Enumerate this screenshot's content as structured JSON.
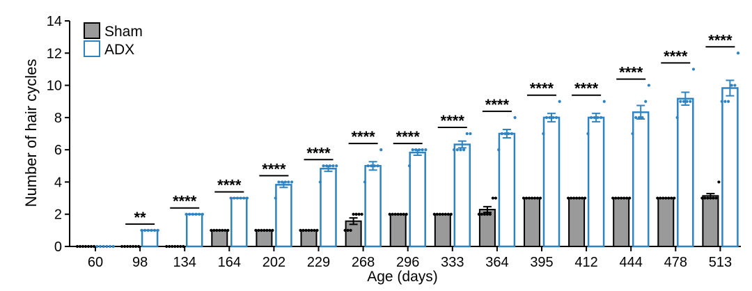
{
  "chart_data": {
    "type": "bar",
    "title": "",
    "xlabel": "Age (days)",
    "ylabel": "Number of hair cycles",
    "ylim": [
      0,
      14
    ],
    "yticks": [
      0,
      2,
      4,
      6,
      8,
      10,
      12,
      14
    ],
    "categories": [
      "60",
      "98",
      "134",
      "164",
      "202",
      "229",
      "268",
      "296",
      "333",
      "364",
      "395",
      "412",
      "444",
      "478",
      "513"
    ],
    "series": [
      {
        "name": "Sham",
        "style": "filled",
        "color": "#9a9a9a",
        "edge": "#000000",
        "values": [
          0,
          0,
          0,
          1,
          1,
          1,
          1.57,
          2,
          2,
          2.29,
          3,
          3,
          3,
          3,
          3.14
        ],
        "sem": [
          0,
          0,
          0,
          0,
          0,
          0,
          0.2,
          0,
          0,
          0.18,
          0,
          0,
          0,
          0,
          0.14
        ],
        "points": [
          [
            0,
            0,
            0,
            0,
            0,
            0,
            0
          ],
          [
            0,
            0,
            0,
            0,
            0,
            0,
            0
          ],
          [
            0,
            0,
            0,
            0,
            0,
            0,
            0
          ],
          [
            1,
            1,
            1,
            1,
            1,
            1,
            1
          ],
          [
            1,
            1,
            1,
            1,
            1,
            1,
            1
          ],
          [
            1,
            1,
            1,
            1,
            1,
            1,
            1
          ],
          [
            1,
            1,
            1,
            2,
            2,
            2,
            2
          ],
          [
            2,
            2,
            2,
            2,
            2,
            2,
            2
          ],
          [
            2,
            2,
            2,
            2,
            2,
            2,
            2
          ],
          [
            2,
            2,
            2,
            2,
            2,
            3,
            3
          ],
          [
            3,
            3,
            3,
            3,
            3,
            3,
            3
          ],
          [
            3,
            3,
            3,
            3,
            3,
            3,
            3
          ],
          [
            3,
            3,
            3,
            3,
            3,
            3,
            3
          ],
          [
            3,
            3,
            3,
            3,
            3,
            3,
            3
          ],
          [
            3,
            3,
            3,
            3,
            3,
            3,
            4
          ]
        ]
      },
      {
        "name": "ADX",
        "style": "open",
        "color": "#2f83c0",
        "edge": "#2f83c0",
        "values": [
          0,
          1,
          2,
          3,
          3.83,
          4.83,
          5.0,
          5.83,
          6.33,
          7.0,
          8.0,
          8.0,
          8.33,
          9.17,
          9.83
        ],
        "sem": [
          0,
          0,
          0,
          0,
          0.17,
          0.17,
          0.26,
          0.17,
          0.21,
          0.26,
          0.26,
          0.26,
          0.42,
          0.4,
          0.48
        ],
        "points": [
          [
            0,
            0,
            0,
            0,
            0,
            0
          ],
          [
            1,
            1,
            1,
            1,
            1,
            1
          ],
          [
            2,
            2,
            2,
            2,
            2,
            2
          ],
          [
            3,
            3,
            3,
            3,
            3,
            3
          ],
          [
            3,
            4,
            4,
            4,
            4,
            4
          ],
          [
            4,
            5,
            5,
            5,
            5,
            5
          ],
          [
            4,
            5,
            5,
            5,
            5,
            6
          ],
          [
            5,
            6,
            6,
            6,
            6,
            6
          ],
          [
            6,
            6,
            6,
            6,
            7,
            7
          ],
          [
            6,
            7,
            7,
            7,
            7,
            8
          ],
          [
            7,
            8,
            8,
            8,
            8,
            9
          ],
          [
            7,
            8,
            8,
            8,
            8,
            9
          ],
          [
            7,
            8,
            8,
            8,
            9,
            10
          ],
          [
            8,
            9,
            9,
            9,
            9,
            11
          ],
          [
            9,
            9,
            9,
            10,
            10,
            12
          ]
        ]
      }
    ],
    "significance": [
      "",
      "**",
      "****",
      "****",
      "****",
      "****",
      "****",
      "****",
      "****",
      "****",
      "****",
      "****",
      "****",
      "****",
      "****"
    ],
    "legend": {
      "position": "top-left",
      "entries": [
        "Sham",
        "ADX"
      ]
    },
    "grid": false,
    "error_bars": "SEM"
  }
}
